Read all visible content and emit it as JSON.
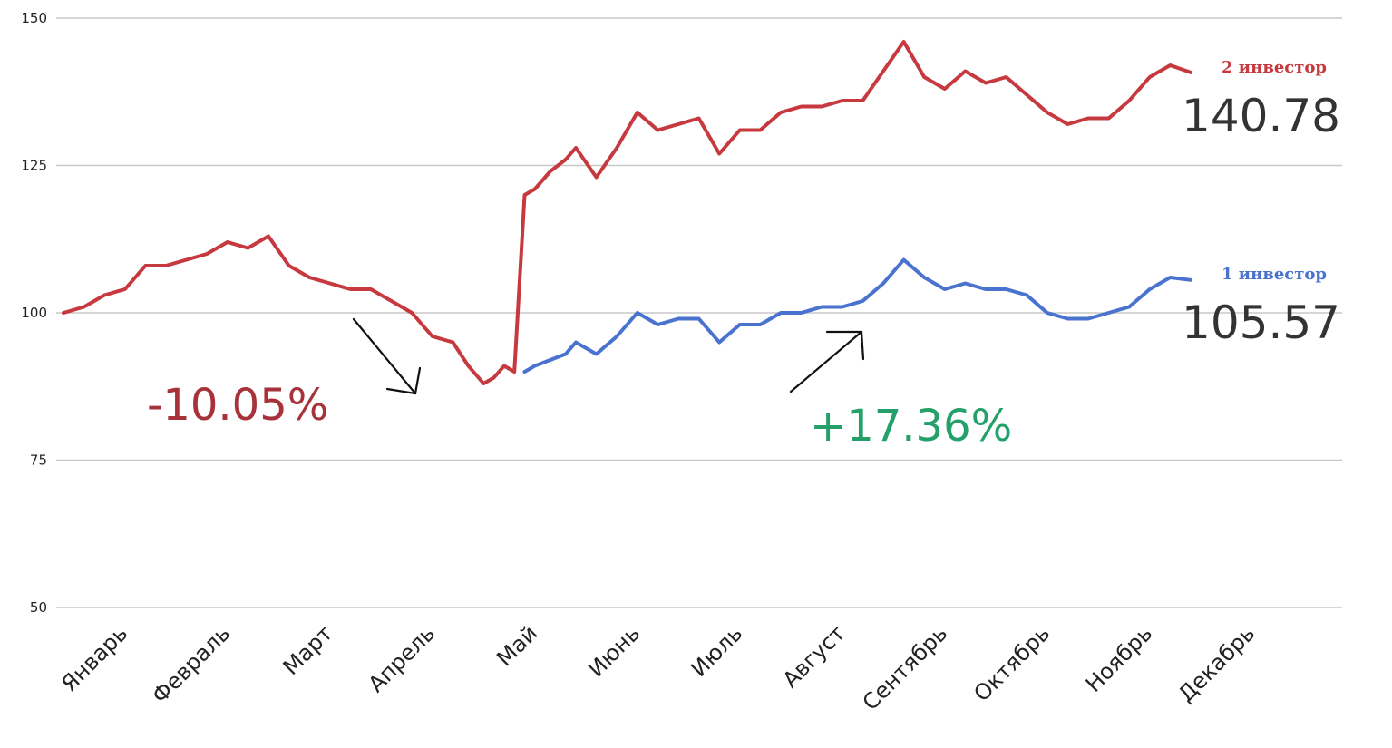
{
  "chart_data": {
    "type": "line",
    "title": "",
    "xlabel": "",
    "ylabel": "",
    "ylim": [
      50,
      150
    ],
    "yticks": [
      50,
      75,
      100,
      125,
      150
    ],
    "grid": "horizontal",
    "categories": [
      "Январь",
      "Февраль",
      "Март",
      "Апрель",
      "Май",
      "Июнь",
      "Июль",
      "Август",
      "Сентябрь",
      "Октябрь",
      "Ноябрь",
      "Декабрь"
    ],
    "series": [
      {
        "name": "2 инвестор",
        "color": "#c6393f",
        "final_label": "140.78",
        "x": [
          0,
          0.2,
          0.4,
          0.6,
          0.8,
          1.0,
          1.2,
          1.4,
          1.6,
          1.8,
          2.0,
          2.2,
          2.4,
          2.6,
          2.8,
          3.0,
          3.2,
          3.4,
          3.6,
          3.8,
          3.95,
          4.1,
          4.2,
          4.3,
          4.4,
          4.5,
          4.6,
          4.75,
          4.9,
          5.0,
          5.2,
          5.4,
          5.6,
          5.8,
          6.0,
          6.2,
          6.4,
          6.6,
          6.8,
          7.0,
          7.2,
          7.4,
          7.6,
          7.8,
          8.0,
          8.2,
          8.4,
          8.6,
          8.8,
          9.0,
          9.2,
          9.4,
          9.6,
          9.8,
          10.0,
          10.2,
          10.4,
          10.6,
          10.8,
          11.0
        ],
        "values": [
          100,
          101,
          103,
          104,
          108,
          108,
          109,
          110,
          112,
          111,
          113,
          108,
          106,
          105,
          104,
          104,
          102,
          100,
          96,
          95,
          91,
          88,
          89,
          91,
          90,
          120,
          121,
          124,
          126,
          128,
          123,
          128,
          134,
          131,
          132,
          133,
          127,
          131,
          131,
          134,
          135,
          135,
          136,
          136,
          141,
          146,
          140,
          138,
          141,
          139,
          140,
          137,
          134,
          132,
          133,
          133,
          136,
          140,
          142,
          140.78
        ]
      },
      {
        "name": "1 инвестор",
        "color": "#4a73cf",
        "final_label": "105.57",
        "x": [
          4.5,
          4.6,
          4.75,
          4.9,
          5.0,
          5.2,
          5.4,
          5.6,
          5.8,
          6.0,
          6.2,
          6.4,
          6.6,
          6.8,
          7.0,
          7.2,
          7.4,
          7.6,
          7.8,
          8.0,
          8.2,
          8.4,
          8.6,
          8.8,
          9.0,
          9.2,
          9.4,
          9.6,
          9.8,
          10.0,
          10.2,
          10.4,
          10.6,
          10.8,
          11.0
        ],
        "values": [
          90,
          91,
          92,
          93,
          95,
          93,
          96,
          100,
          98,
          99,
          99,
          95,
          98,
          98,
          100,
          100,
          101,
          101,
          102,
          105,
          109,
          106,
          104,
          105,
          104,
          104,
          103,
          100,
          99,
          99,
          100,
          101,
          104,
          106,
          105.57
        ]
      }
    ],
    "annotations": [
      {
        "text": "-10.05%",
        "color": "#a8323a"
      },
      {
        "text": "+17.36%",
        "color": "#24a06a"
      }
    ]
  }
}
